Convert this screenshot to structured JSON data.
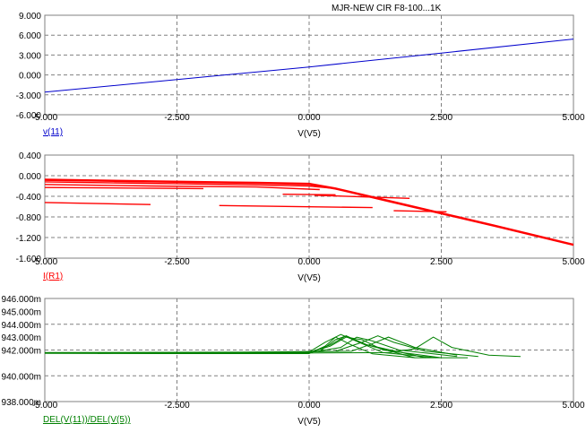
{
  "window": {
    "title": "MJR-NEW CIR F8-100...1K"
  },
  "chart_data": [
    {
      "type": "line",
      "trace_label": "v(11)",
      "xlabel": "V(V5)",
      "color": "#0000cc",
      "xlim": [
        -5,
        5
      ],
      "ylim": [
        -6,
        9
      ],
      "x_ticks": [
        "-5.000",
        "-2.500",
        "0.000",
        "2.500",
        "5.000"
      ],
      "y_ticks": [
        "9.000",
        "6.000",
        "3.000",
        "0.000",
        "-3.000",
        "-6.000"
      ],
      "series": [
        {
          "x": [
            -5,
            -2.5,
            0,
            2.5,
            5
          ],
          "y": [
            -2.6,
            -0.7,
            1.2,
            3.3,
            5.4
          ]
        }
      ]
    },
    {
      "type": "line",
      "trace_label": "I(R1)",
      "xlabel": "V(V5)",
      "color": "#ff0000",
      "xlim": [
        -5,
        5
      ],
      "ylim": [
        -1.6,
        0.4
      ],
      "x_ticks": [
        "-5.000",
        "-2.500",
        "0.000",
        "2.500",
        "5.000"
      ],
      "y_ticks": [
        "0.400",
        "0.000",
        "-0.400",
        "-0.800",
        "-1.200",
        "-1.600"
      ],
      "series": [
        {
          "x": [
            -5,
            -3,
            -1,
            0,
            0.5,
            1.5,
            2.5,
            3.5,
            5
          ],
          "y": [
            -0.07,
            -0.1,
            -0.13,
            -0.15,
            -0.24,
            -0.48,
            -0.72,
            -0.96,
            -1.33
          ]
        },
        {
          "x": [
            -5,
            -3,
            -1,
            0,
            0.5,
            1.5,
            2.5,
            3.5,
            5
          ],
          "y": [
            -0.08,
            -0.11,
            -0.14,
            -0.16,
            -0.25,
            -0.49,
            -0.73,
            -0.97,
            -1.34
          ]
        },
        {
          "x": [
            -5,
            -3,
            -1,
            0,
            0.5,
            1.5,
            2.5,
            3.5,
            5
          ],
          "y": [
            -0.09,
            -0.12,
            -0.15,
            -0.17,
            -0.26,
            -0.5,
            -0.74,
            -0.98,
            -1.35
          ]
        },
        {
          "x": [
            -5,
            -3,
            -1,
            0,
            0.4
          ],
          "y": [
            -0.12,
            -0.15,
            -0.18,
            -0.2,
            -0.24
          ]
        },
        {
          "x": [
            -5,
            -3,
            -1,
            0.2
          ],
          "y": [
            -0.17,
            -0.2,
            -0.22,
            -0.27
          ]
        },
        {
          "x": [
            -5,
            -2
          ],
          "y": [
            -0.23,
            -0.25
          ]
        },
        {
          "x": [
            -0.5,
            0.5
          ],
          "y": [
            -0.36,
            -0.37
          ]
        },
        {
          "x": [
            -5,
            -3
          ],
          "y": [
            -0.52,
            -0.56
          ]
        },
        {
          "x": [
            -1.7,
            1.2
          ],
          "y": [
            -0.58,
            -0.62
          ]
        },
        {
          "x": [
            1.6,
            2.6
          ],
          "y": [
            -0.68,
            -0.7
          ]
        },
        {
          "x": [
            0.1,
            1.9
          ],
          "y": [
            -0.38,
            -0.44
          ]
        }
      ]
    },
    {
      "type": "line",
      "trace_label": "DEL(V(11))/DEL(V(5))",
      "xlabel": "V(V5)",
      "color": "#008000",
      "xlim": [
        -5,
        5
      ],
      "ylim": [
        938,
        946
      ],
      "x_ticks": [
        "-5.000",
        "-2.500",
        "0.000",
        "2.500",
        "5.000"
      ],
      "y_ticks": [
        "946.000m",
        "944.000m",
        "942.000m",
        "940.000m",
        "938.000m"
      ],
      "y_tick_values": [
        946,
        944,
        942,
        940,
        938
      ],
      "extra_y_ticks": [
        "945.000m",
        "943.000m"
      ],
      "extra_y_tick_values": [
        945,
        943
      ],
      "series": [
        {
          "x": [
            -5,
            -2,
            0,
            0.3,
            0.5,
            0.8,
            1.2,
            2,
            3
          ],
          "y": [
            941.75,
            941.72,
            941.72,
            942.3,
            943.0,
            942.4,
            941.7,
            941.4,
            941.4
          ]
        },
        {
          "x": [
            -5,
            -1,
            0.2,
            0.5,
            0.7,
            1.0,
            1.4,
            2.4
          ],
          "y": [
            941.75,
            941.72,
            941.9,
            942.8,
            943.1,
            942.5,
            941.8,
            941.4
          ]
        },
        {
          "x": [
            -4,
            0,
            0.4,
            0.7,
            1.0,
            1.4,
            2.5
          ],
          "y": [
            941.75,
            941.8,
            942.3,
            943.0,
            942.8,
            942.0,
            941.4
          ]
        },
        {
          "x": [
            -4,
            0,
            0.6,
            0.9,
            1.2,
            1.7,
            2.8
          ],
          "y": [
            941.75,
            941.8,
            942.2,
            943.0,
            942.7,
            942.0,
            941.5
          ]
        },
        {
          "x": [
            -3,
            0.5,
            1.0,
            1.3,
            1.6,
            2.2,
            3.2
          ],
          "y": [
            941.75,
            941.9,
            942.6,
            943.1,
            942.6,
            941.9,
            941.5
          ]
        },
        {
          "x": [
            -2,
            0.8,
            1.2,
            1.5,
            2.0,
            2.8
          ],
          "y": [
            941.75,
            941.9,
            942.5,
            943.0,
            942.2,
            941.6
          ]
        },
        {
          "x": [
            -1,
            1.5,
            2.0,
            2.35,
            2.7,
            3.4,
            4.0
          ],
          "y": [
            941.75,
            941.8,
            942.1,
            943.0,
            942.2,
            941.6,
            941.5
          ]
        },
        {
          "x": [
            -5,
            0,
            0.3,
            0.6,
            1.0,
            2.0
          ],
          "y": [
            941.8,
            941.85,
            942.6,
            943.2,
            942.5,
            941.4
          ]
        },
        {
          "x": [
            -5,
            0,
            0.4,
            0.7,
            1.1,
            2.2
          ],
          "y": [
            941.8,
            941.8,
            942.4,
            943.1,
            942.4,
            941.4
          ]
        }
      ]
    }
  ]
}
